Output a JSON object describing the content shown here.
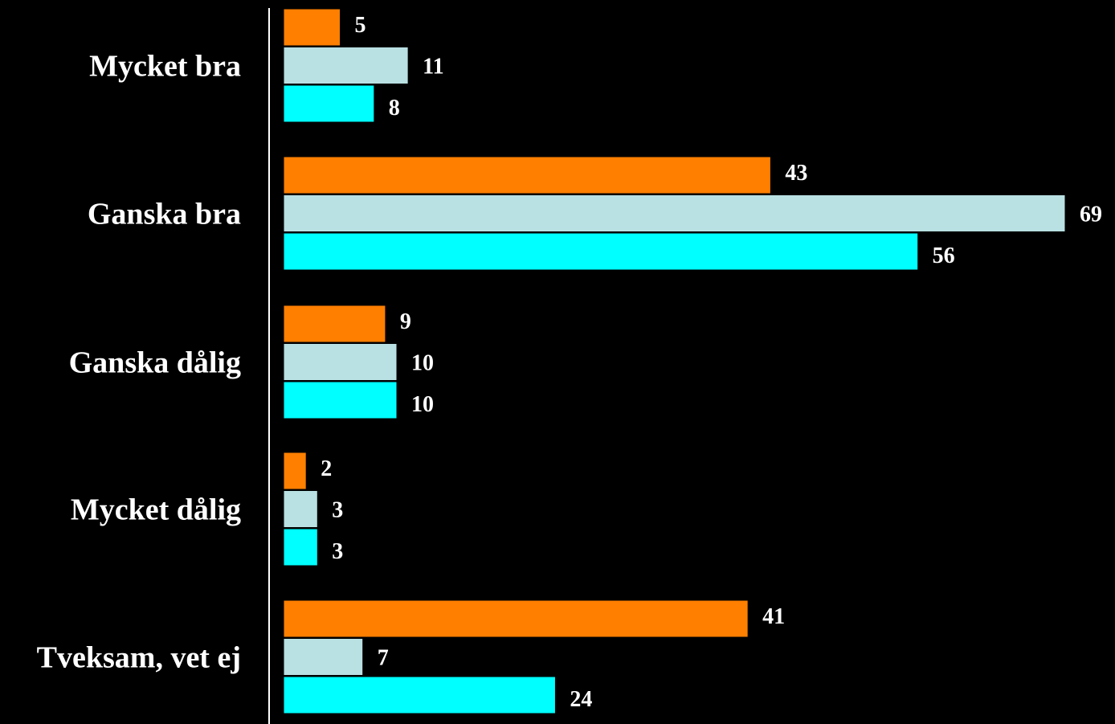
{
  "chart_data": {
    "type": "bar",
    "orientation": "horizontal",
    "title": "",
    "xlabel": "",
    "ylabel": "",
    "categories": [
      "Mycket bra",
      "Ganska bra",
      "Ganska dålig",
      "Mycket dålig",
      "Tveksam, vet ej"
    ],
    "series": [
      {
        "color": "#ff7f00",
        "values": [
          5,
          43,
          9,
          2,
          41
        ]
      },
      {
        "color": "#b9e0e3",
        "values": [
          11,
          69,
          10,
          3,
          7
        ]
      },
      {
        "color": "#00ffff",
        "values": [
          8,
          56,
          10,
          3,
          24
        ]
      }
    ],
    "xlim": [
      0,
      69
    ],
    "grid": false,
    "legend": "none",
    "background": "#000000",
    "axis_color": "#ffffff"
  }
}
